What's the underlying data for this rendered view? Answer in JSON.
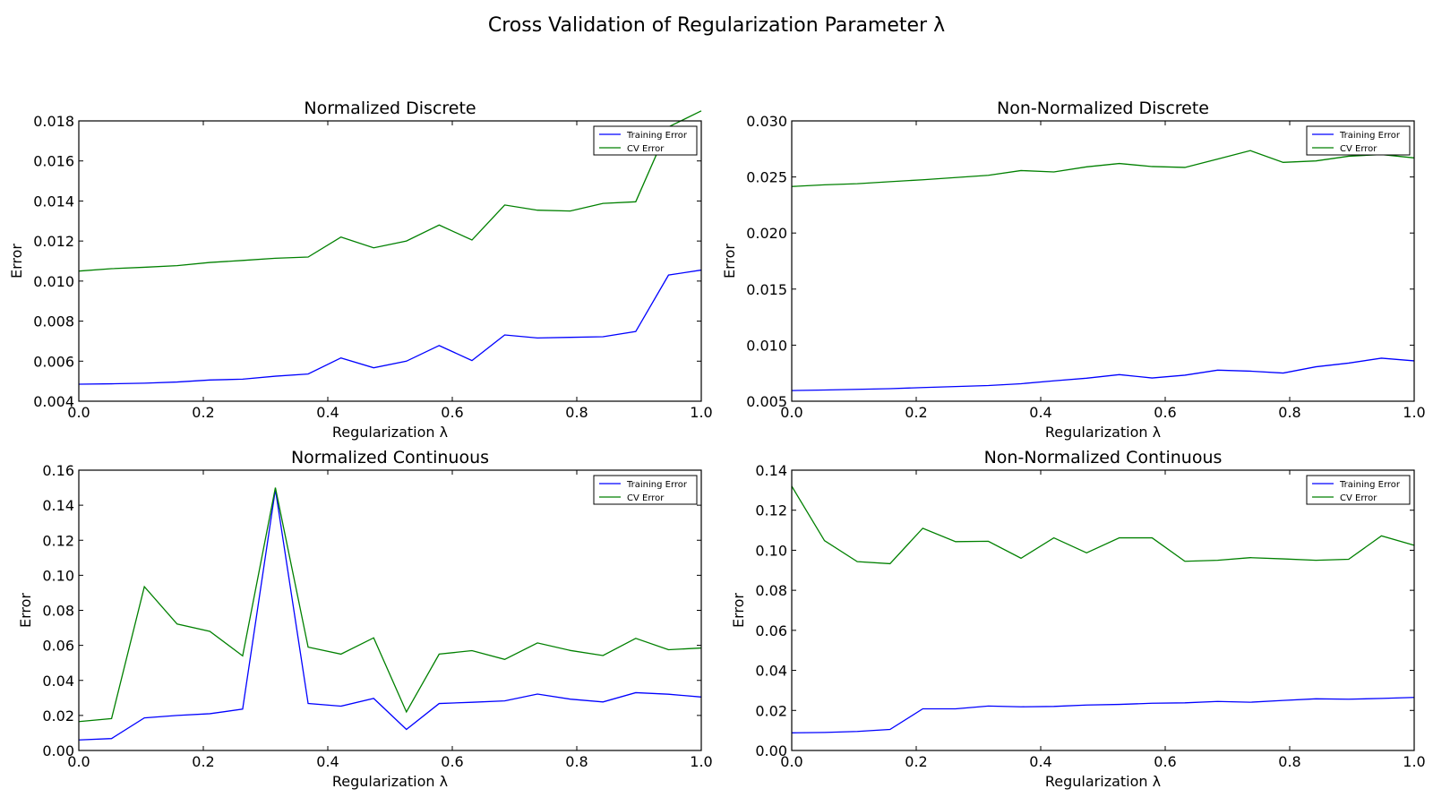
{
  "figure": {
    "title": "Cross Validation of Regularization Parameter λ"
  },
  "chart_data": [
    {
      "type": "line",
      "title": "Normalized Discrete",
      "xlabel": "Regularization λ",
      "ylabel": "Error",
      "xlim": [
        0.0,
        1.0
      ],
      "ylim": [
        0.004,
        0.018
      ],
      "xticks": [
        "0.0",
        "0.2",
        "0.4",
        "0.6",
        "0.8",
        "1.0"
      ],
      "yticks": [
        "0.004",
        "0.006",
        "0.008",
        "0.010",
        "0.012",
        "0.014",
        "0.016",
        "0.018"
      ],
      "legend": "top-right",
      "x": [
        0.0,
        0.0526,
        0.1053,
        0.1579,
        0.2105,
        0.2632,
        0.3158,
        0.3684,
        0.4211,
        0.4737,
        0.5263,
        0.5789,
        0.6316,
        0.6842,
        0.7368,
        0.7895,
        0.8421,
        0.8947,
        0.9474,
        1.0
      ],
      "series": [
        {
          "name": "Training Error",
          "color": "#0000ff",
          "values": [
            0.00485,
            0.00487,
            0.0049,
            0.00496,
            0.00506,
            0.0051,
            0.00525,
            0.00536,
            0.00616,
            0.00567,
            0.006,
            0.00678,
            0.00603,
            0.00731,
            0.00716,
            0.00719,
            0.00722,
            0.00748,
            0.0103,
            0.01055
          ]
        },
        {
          "name": "CV Error",
          "color": "#008000",
          "values": [
            0.0105,
            0.01062,
            0.01069,
            0.01077,
            0.01093,
            0.01103,
            0.01114,
            0.0112,
            0.0122,
            0.01166,
            0.012,
            0.0128,
            0.01205,
            0.0138,
            0.01354,
            0.0135,
            0.01388,
            0.01396,
            0.0177,
            0.0185
          ]
        }
      ]
    },
    {
      "type": "line",
      "title": "Non-Normalized Discrete",
      "xlabel": "Regularization λ",
      "ylabel": "Error",
      "xlim": [
        0.0,
        1.0
      ],
      "ylim": [
        0.005,
        0.03
      ],
      "xticks": [
        "0.0",
        "0.2",
        "0.4",
        "0.6",
        "0.8",
        "1.0"
      ],
      "yticks": [
        "0.005",
        "0.010",
        "0.015",
        "0.020",
        "0.025",
        "0.030"
      ],
      "legend": "top-right",
      "x": [
        0.0,
        0.0526,
        0.1053,
        0.1579,
        0.2105,
        0.2632,
        0.3158,
        0.3684,
        0.4211,
        0.4737,
        0.5263,
        0.5789,
        0.6316,
        0.6842,
        0.7368,
        0.7895,
        0.8421,
        0.8947,
        0.9474,
        1.0
      ],
      "series": [
        {
          "name": "Training Error",
          "color": "#0000ff",
          "values": [
            0.00595,
            0.006,
            0.00606,
            0.00612,
            0.00622,
            0.00631,
            0.0064,
            0.00656,
            0.00682,
            0.00705,
            0.00737,
            0.00707,
            0.00732,
            0.00777,
            0.00768,
            0.00751,
            0.00807,
            0.0084,
            0.00884,
            0.0086
          ]
        },
        {
          "name": "CV Error",
          "color": "#008000",
          "values": [
            0.02415,
            0.0243,
            0.0244,
            0.02458,
            0.02475,
            0.02495,
            0.02515,
            0.02557,
            0.02545,
            0.0259,
            0.0262,
            0.02593,
            0.02585,
            0.0266,
            0.02735,
            0.0263,
            0.02643,
            0.02685,
            0.027,
            0.0267
          ]
        }
      ]
    },
    {
      "type": "line",
      "title": "Normalized Continuous",
      "xlabel": "Regularization λ",
      "ylabel": "Error",
      "xlim": [
        0.0,
        1.0
      ],
      "ylim": [
        0.0,
        0.16
      ],
      "xticks": [
        "0.0",
        "0.2",
        "0.4",
        "0.6",
        "0.8",
        "1.0"
      ],
      "yticks": [
        "0.00",
        "0.02",
        "0.04",
        "0.06",
        "0.08",
        "0.10",
        "0.12",
        "0.14",
        "0.16"
      ],
      "legend": "top-right",
      "x": [
        0.0,
        0.0526,
        0.1053,
        0.1579,
        0.2105,
        0.2632,
        0.3158,
        0.3684,
        0.4211,
        0.4737,
        0.5263,
        0.5789,
        0.6316,
        0.6842,
        0.7368,
        0.7895,
        0.8421,
        0.8947,
        0.9474,
        1.0
      ],
      "series": [
        {
          "name": "Training Error",
          "color": "#0000ff",
          "values": [
            0.006,
            0.0068,
            0.0186,
            0.02,
            0.021,
            0.0236,
            0.149,
            0.0268,
            0.0253,
            0.0297,
            0.012,
            0.0268,
            0.0275,
            0.0283,
            0.0322,
            0.0293,
            0.0277,
            0.033,
            0.0321,
            0.0305
          ]
        },
        {
          "name": "CV Error",
          "color": "#008000",
          "values": [
            0.0165,
            0.0182,
            0.0935,
            0.0722,
            0.068,
            0.054,
            0.15,
            0.059,
            0.055,
            0.0643,
            0.022,
            0.055,
            0.057,
            0.052,
            0.0614,
            0.0571,
            0.0542,
            0.064,
            0.0575,
            0.0585
          ]
        }
      ]
    },
    {
      "type": "line",
      "title": "Non-Normalized Continuous",
      "xlabel": "Regularization λ",
      "ylabel": "Error",
      "xlim": [
        0.0,
        1.0
      ],
      "ylim": [
        0.0,
        0.14
      ],
      "xticks": [
        "0.0",
        "0.2",
        "0.4",
        "0.6",
        "0.8",
        "1.0"
      ],
      "yticks": [
        "0.00",
        "0.02",
        "0.04",
        "0.06",
        "0.08",
        "0.10",
        "0.12",
        "0.14"
      ],
      "legend": "top-right",
      "x": [
        0.0,
        0.0526,
        0.1053,
        0.1579,
        0.2105,
        0.2632,
        0.3158,
        0.3684,
        0.4211,
        0.4737,
        0.5263,
        0.5789,
        0.6316,
        0.6842,
        0.7368,
        0.7895,
        0.8421,
        0.8947,
        0.9474,
        1.0
      ],
      "series": [
        {
          "name": "Training Error",
          "color": "#0000ff",
          "values": [
            0.0088,
            0.009,
            0.0095,
            0.0105,
            0.0208,
            0.0208,
            0.0222,
            0.0218,
            0.022,
            0.0227,
            0.023,
            0.0236,
            0.0238,
            0.0245,
            0.0241,
            0.025,
            0.0258,
            0.0256,
            0.026,
            0.0265
          ]
        },
        {
          "name": "CV Error",
          "color": "#008000",
          "values": [
            0.132,
            0.1048,
            0.0943,
            0.0933,
            0.111,
            0.1043,
            0.1045,
            0.096,
            0.1062,
            0.0987,
            0.1062,
            0.1062,
            0.0945,
            0.095,
            0.0963,
            0.0957,
            0.095,
            0.0955,
            0.1072,
            0.1025
          ]
        }
      ]
    }
  ]
}
